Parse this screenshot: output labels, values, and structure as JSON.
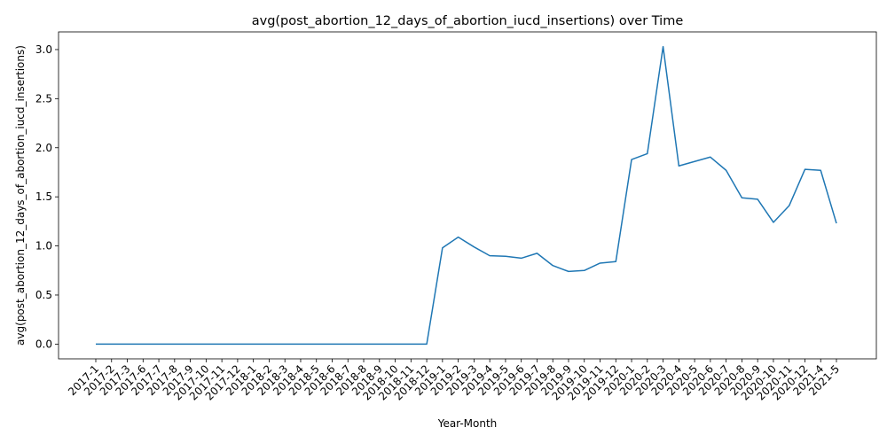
{
  "chart_data": {
    "type": "line",
    "title": "avg(post_abortion_12_days_of_abortion_iucd_insertions) over Time",
    "xlabel": "Year-Month",
    "ylabel": "avg(post_abortion_12_days_of_abortion_iucd_insertions)",
    "ylim": [
      -0.15,
      3.18
    ],
    "yticks": [
      0.0,
      0.5,
      1.0,
      1.5,
      2.0,
      2.5,
      3.0
    ],
    "ytick_labels": [
      "0.0",
      "0.5",
      "1.0",
      "1.5",
      "2.0",
      "2.5",
      "3.0"
    ],
    "grid": false,
    "line_color": "#1f77b4",
    "x": [
      "2017-1",
      "2017-2",
      "2017-3",
      "2017-6",
      "2017-7",
      "2017-8",
      "2017-9",
      "2017-10",
      "2017-11",
      "2017-12",
      "2018-1",
      "2018-2",
      "2018-3",
      "2018-4",
      "2018-5",
      "2018-6",
      "2018-7",
      "2018-8",
      "2018-9",
      "2018-10",
      "2018-11",
      "2018-12",
      "2019-1",
      "2019-2",
      "2019-3",
      "2019-4",
      "2019-5",
      "2019-6",
      "2019-7",
      "2019-8",
      "2019-9",
      "2019-10",
      "2019-11",
      "2019-12",
      "2020-1",
      "2020-2",
      "2020-3",
      "2020-4",
      "2020-5",
      "2020-6",
      "2020-7",
      "2020-8",
      "2020-9",
      "2020-10",
      "2020-11",
      "2020-12",
      "2021-4",
      "2021-5"
    ],
    "series": [
      {
        "values": [
          0,
          0,
          0,
          0,
          0,
          0,
          0,
          0,
          0,
          0,
          0,
          0,
          0,
          0,
          0,
          0,
          0,
          0,
          0,
          0,
          0,
          0,
          0.98,
          1.09,
          0.99,
          0.9,
          0.895,
          0.875,
          0.925,
          0.8,
          0.74,
          0.75,
          0.825,
          0.84,
          1.88,
          1.94,
          3.03,
          1.815,
          1.86,
          1.905,
          1.77,
          1.49,
          1.475,
          1.24,
          1.41,
          1.78,
          1.77,
          1.23
        ]
      }
    ]
  }
}
